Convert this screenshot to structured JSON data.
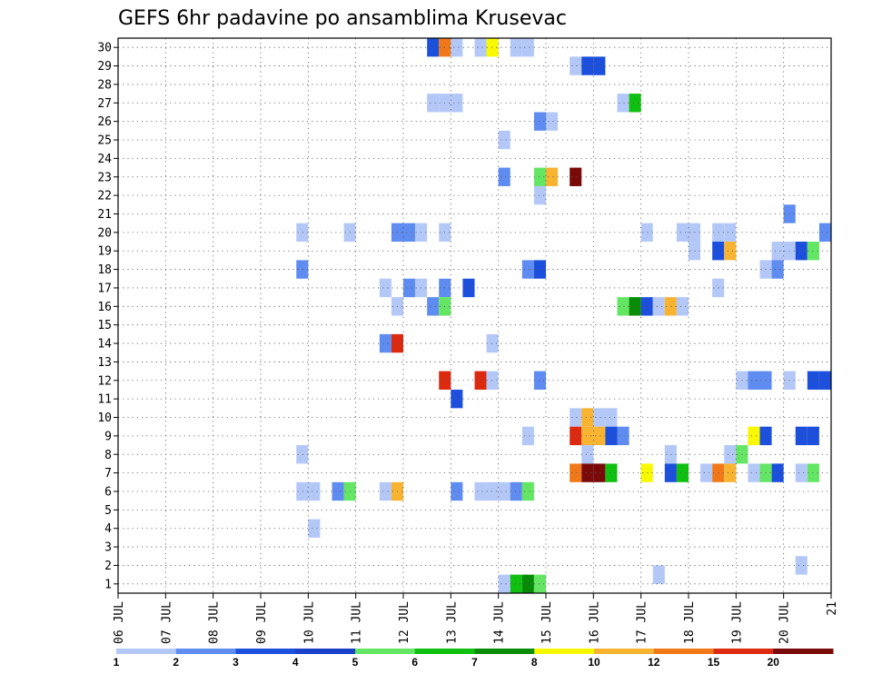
{
  "chart_data": {
    "type": "heatmap",
    "title": "GEFS 6hr padavine po ansamblima Krusevac",
    "x_tick_labels": [
      "06 JUL",
      "07 JUL",
      "08 JUL",
      "09 JUL",
      "10 JUL",
      "11 JUL",
      "12 JUL",
      "13 JUL",
      "14 JUL",
      "15 JUL",
      "16 JUL",
      "17 JUL",
      "18 JUL",
      "19 JUL",
      "20 JUL",
      "21"
    ],
    "y_tick_labels": [
      "1",
      "2",
      "3",
      "4",
      "5",
      "6",
      "7",
      "8",
      "9",
      "10",
      "11",
      "12",
      "13",
      "14",
      "15",
      "16",
      "17",
      "18",
      "19",
      "20",
      "21",
      "22",
      "23",
      "24",
      "25",
      "26",
      "27",
      "28",
      "29",
      "30"
    ],
    "xlim": [
      0,
      60
    ],
    "ylim": [
      0.5,
      30.5
    ],
    "x_step": "6hr",
    "grid": true,
    "colorbar": {
      "placement": "bottom",
      "labels": [
        "1",
        "2",
        "3",
        "4",
        "5",
        "6",
        "7",
        "8",
        "10",
        "12",
        "15",
        "20"
      ],
      "colors": [
        "#b4c8f8",
        "#5f8cf0",
        "#1c50dc",
        "#1a3fc8",
        "#64e664",
        "#10c010",
        "#088c08",
        "#f8f800",
        "#f8b430",
        "#f07818",
        "#dc2a10",
        "#7a0a0a"
      ]
    },
    "cells": [
      {
        "m": 30,
        "t": 26.5,
        "c": "#1c50dc"
      },
      {
        "m": 30,
        "t": 27.5,
        "c": "#f07818"
      },
      {
        "m": 30,
        "t": 28.5,
        "c": "#b4c8f8"
      },
      {
        "m": 30,
        "t": 30.5,
        "c": "#b4c8f8"
      },
      {
        "m": 30,
        "t": 31.5,
        "c": "#f8f800"
      },
      {
        "m": 30,
        "t": 33.5,
        "c": "#b4c8f8"
      },
      {
        "m": 30,
        "t": 34.5,
        "c": "#b4c8f8"
      },
      {
        "m": 29,
        "t": 38.5,
        "c": "#b4c8f8"
      },
      {
        "m": 29,
        "t": 39.5,
        "c": "#1c50dc"
      },
      {
        "m": 29,
        "t": 40.5,
        "c": "#1c50dc"
      },
      {
        "m": 27,
        "t": 26.5,
        "c": "#b4c8f8"
      },
      {
        "m": 27,
        "t": 27.5,
        "c": "#b4c8f8"
      },
      {
        "m": 27,
        "t": 28.5,
        "c": "#b4c8f8"
      },
      {
        "m": 27,
        "t": 42.5,
        "c": "#b4c8f8"
      },
      {
        "m": 27,
        "t": 43.5,
        "c": "#10c010"
      },
      {
        "m": 26,
        "t": 35.5,
        "c": "#5f8cf0"
      },
      {
        "m": 26,
        "t": 36.5,
        "c": "#b4c8f8"
      },
      {
        "m": 25,
        "t": 32.5,
        "c": "#b4c8f8"
      },
      {
        "m": 23,
        "t": 32.5,
        "c": "#5f8cf0"
      },
      {
        "m": 23,
        "t": 35.5,
        "c": "#64e664"
      },
      {
        "m": 23,
        "t": 36.5,
        "c": "#f8b430"
      },
      {
        "m": 23,
        "t": 38.5,
        "c": "#7a0a0a"
      },
      {
        "m": 22,
        "t": 35.5,
        "c": "#b4c8f8"
      },
      {
        "m": 21,
        "t": 56.5,
        "c": "#5f8cf0"
      },
      {
        "m": 20,
        "t": 15.5,
        "c": "#b4c8f8"
      },
      {
        "m": 20,
        "t": 19.5,
        "c": "#b4c8f8"
      },
      {
        "m": 20,
        "t": 23.5,
        "c": "#5f8cf0"
      },
      {
        "m": 20,
        "t": 24.5,
        "c": "#5f8cf0"
      },
      {
        "m": 20,
        "t": 25.5,
        "c": "#b4c8f8"
      },
      {
        "m": 20,
        "t": 27.5,
        "c": "#b4c8f8"
      },
      {
        "m": 20,
        "t": 44.5,
        "c": "#b4c8f8"
      },
      {
        "m": 20,
        "t": 47.5,
        "c": "#b4c8f8"
      },
      {
        "m": 20,
        "t": 48.5,
        "c": "#b4c8f8"
      },
      {
        "m": 20,
        "t": 50.5,
        "c": "#b4c8f8"
      },
      {
        "m": 20,
        "t": 51.5,
        "c": "#b4c8f8"
      },
      {
        "m": 20,
        "t": 59.5,
        "c": "#5f8cf0"
      },
      {
        "m": 19,
        "t": 48.5,
        "c": "#b4c8f8"
      },
      {
        "m": 19,
        "t": 50.5,
        "c": "#1c50dc"
      },
      {
        "m": 19,
        "t": 51.5,
        "c": "#f8b430"
      },
      {
        "m": 19,
        "t": 55.5,
        "c": "#b4c8f8"
      },
      {
        "m": 19,
        "t": 56.5,
        "c": "#b4c8f8"
      },
      {
        "m": 19,
        "t": 57.5,
        "c": "#1c50dc"
      },
      {
        "m": 19,
        "t": 58.5,
        "c": "#64e664"
      },
      {
        "m": 18,
        "t": 15.5,
        "c": "#5f8cf0"
      },
      {
        "m": 18,
        "t": 34.5,
        "c": "#5f8cf0"
      },
      {
        "m": 18,
        "t": 35.5,
        "c": "#1c50dc"
      },
      {
        "m": 18,
        "t": 54.5,
        "c": "#b4c8f8"
      },
      {
        "m": 18,
        "t": 55.5,
        "c": "#5f8cf0"
      },
      {
        "m": 17,
        "t": 22.5,
        "c": "#b4c8f8"
      },
      {
        "m": 17,
        "t": 24.5,
        "c": "#5f8cf0"
      },
      {
        "m": 17,
        "t": 25.5,
        "c": "#b4c8f8"
      },
      {
        "m": 17,
        "t": 27.5,
        "c": "#5f8cf0"
      },
      {
        "m": 17,
        "t": 29.5,
        "c": "#1c50dc"
      },
      {
        "m": 17,
        "t": 50.5,
        "c": "#b4c8f8"
      },
      {
        "m": 16,
        "t": 23.5,
        "c": "#b4c8f8"
      },
      {
        "m": 16,
        "t": 26.5,
        "c": "#5f8cf0"
      },
      {
        "m": 16,
        "t": 27.5,
        "c": "#64e664"
      },
      {
        "m": 16,
        "t": 42.5,
        "c": "#64e664"
      },
      {
        "m": 16,
        "t": 43.5,
        "c": "#088c08"
      },
      {
        "m": 16,
        "t": 44.5,
        "c": "#1c50dc"
      },
      {
        "m": 16,
        "t": 45.5,
        "c": "#b4c8f8"
      },
      {
        "m": 16,
        "t": 46.5,
        "c": "#f8b430"
      },
      {
        "m": 16,
        "t": 47.5,
        "c": "#b4c8f8"
      },
      {
        "m": 14,
        "t": 22.5,
        "c": "#5f8cf0"
      },
      {
        "m": 14,
        "t": 23.5,
        "c": "#dc2a10"
      },
      {
        "m": 14,
        "t": 31.5,
        "c": "#b4c8f8"
      },
      {
        "m": 12,
        "t": 27.5,
        "c": "#dc2a10"
      },
      {
        "m": 12,
        "t": 30.5,
        "c": "#dc2a10"
      },
      {
        "m": 12,
        "t": 31.5,
        "c": "#b4c8f8"
      },
      {
        "m": 12,
        "t": 35.5,
        "c": "#5f8cf0"
      },
      {
        "m": 12,
        "t": 52.5,
        "c": "#b4c8f8"
      },
      {
        "m": 12,
        "t": 53.5,
        "c": "#5f8cf0"
      },
      {
        "m": 12,
        "t": 54.5,
        "c": "#5f8cf0"
      },
      {
        "m": 12,
        "t": 56.5,
        "c": "#b4c8f8"
      },
      {
        "m": 12,
        "t": 58.5,
        "c": "#1c50dc"
      },
      {
        "m": 12,
        "t": 59.5,
        "c": "#1c50dc"
      },
      {
        "m": 11,
        "t": 28.5,
        "c": "#1c50dc"
      },
      {
        "m": 10,
        "t": 38.5,
        "c": "#b4c8f8"
      },
      {
        "m": 10,
        "t": 39.5,
        "c": "#f8b430"
      },
      {
        "m": 10,
        "t": 40.5,
        "c": "#b4c8f8"
      },
      {
        "m": 10,
        "t": 41.5,
        "c": "#b4c8f8"
      },
      {
        "m": 9,
        "t": 34.5,
        "c": "#b4c8f8"
      },
      {
        "m": 9,
        "t": 38.5,
        "c": "#dc2a10"
      },
      {
        "m": 9,
        "t": 39.5,
        "c": "#f8b430"
      },
      {
        "m": 9,
        "t": 40.5,
        "c": "#f8b430"
      },
      {
        "m": 9,
        "t": 41.5,
        "c": "#1c50dc"
      },
      {
        "m": 9,
        "t": 42.5,
        "c": "#5f8cf0"
      },
      {
        "m": 9,
        "t": 53.5,
        "c": "#f8f800"
      },
      {
        "m": 9,
        "t": 54.5,
        "c": "#1c50dc"
      },
      {
        "m": 9,
        "t": 57.5,
        "c": "#1c50dc"
      },
      {
        "m": 9,
        "t": 58.5,
        "c": "#1c50dc"
      },
      {
        "m": 8,
        "t": 15.5,
        "c": "#b4c8f8"
      },
      {
        "m": 8,
        "t": 39.5,
        "c": "#b4c8f8"
      },
      {
        "m": 8,
        "t": 46.5,
        "c": "#b4c8f8"
      },
      {
        "m": 8,
        "t": 51.5,
        "c": "#b4c8f8"
      },
      {
        "m": 8,
        "t": 52.5,
        "c": "#64e664"
      },
      {
        "m": 7,
        "t": 38.5,
        "c": "#f07818"
      },
      {
        "m": 7,
        "t": 39.5,
        "c": "#7a0a0a"
      },
      {
        "m": 7,
        "t": 40.5,
        "c": "#7a0a0a"
      },
      {
        "m": 7,
        "t": 41.5,
        "c": "#10c010"
      },
      {
        "m": 7,
        "t": 44.5,
        "c": "#f8f800"
      },
      {
        "m": 7,
        "t": 46.5,
        "c": "#1c50dc"
      },
      {
        "m": 7,
        "t": 47.5,
        "c": "#10c010"
      },
      {
        "m": 7,
        "t": 49.5,
        "c": "#b4c8f8"
      },
      {
        "m": 7,
        "t": 50.5,
        "c": "#f07818"
      },
      {
        "m": 7,
        "t": 51.5,
        "c": "#f8b430"
      },
      {
        "m": 7,
        "t": 53.5,
        "c": "#b4c8f8"
      },
      {
        "m": 7,
        "t": 54.5,
        "c": "#64e664"
      },
      {
        "m": 7,
        "t": 55.5,
        "c": "#1c50dc"
      },
      {
        "m": 7,
        "t": 57.5,
        "c": "#b4c8f8"
      },
      {
        "m": 7,
        "t": 58.5,
        "c": "#64e664"
      },
      {
        "m": 6,
        "t": 15.5,
        "c": "#b4c8f8"
      },
      {
        "m": 6,
        "t": 16.5,
        "c": "#b4c8f8"
      },
      {
        "m": 6,
        "t": 18.5,
        "c": "#5f8cf0"
      },
      {
        "m": 6,
        "t": 19.5,
        "c": "#64e664"
      },
      {
        "m": 6,
        "t": 22.5,
        "c": "#b4c8f8"
      },
      {
        "m": 6,
        "t": 23.5,
        "c": "#f8b430"
      },
      {
        "m": 6,
        "t": 28.5,
        "c": "#5f8cf0"
      },
      {
        "m": 6,
        "t": 30.5,
        "c": "#b4c8f8"
      },
      {
        "m": 6,
        "t": 31.5,
        "c": "#b4c8f8"
      },
      {
        "m": 6,
        "t": 32.5,
        "c": "#b4c8f8"
      },
      {
        "m": 6,
        "t": 33.5,
        "c": "#5f8cf0"
      },
      {
        "m": 6,
        "t": 34.5,
        "c": "#64e664"
      },
      {
        "m": 4,
        "t": 16.5,
        "c": "#b4c8f8"
      },
      {
        "m": 2,
        "t": 57.5,
        "c": "#b4c8f8"
      },
      {
        "m": 1.5,
        "t": 45.5,
        "c": "#b4c8f8"
      },
      {
        "m": 1,
        "t": 32.5,
        "c": "#b4c8f8"
      },
      {
        "m": 1,
        "t": 33.5,
        "c": "#10c010"
      },
      {
        "m": 1,
        "t": 34.5,
        "c": "#088c08"
      },
      {
        "m": 1,
        "t": 35.5,
        "c": "#64e664"
      }
    ]
  }
}
